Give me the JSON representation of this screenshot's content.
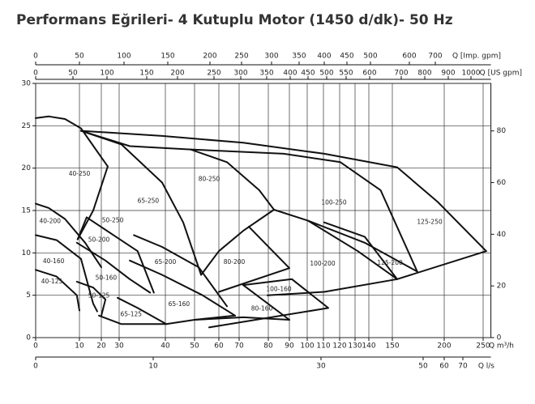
{
  "chart_data": {
    "type": "line",
    "title": "Performans Eğrileri- 4 Kutuplu Motor (1450 d/dk)- 50 Hz",
    "xlabel": "Q m³/h",
    "xlim": [
      0,
      260
    ],
    "xticks": [
      0,
      10,
      20,
      30,
      40,
      50,
      60,
      70,
      80,
      90,
      100,
      110,
      120,
      130,
      140,
      150,
      200,
      250
    ],
    "ylim": [
      0,
      30
    ],
    "yticks": [
      0,
      5,
      10,
      15,
      20,
      25,
      30
    ],
    "y2lim": [
      0,
      98.4
    ],
    "y2ticks": [
      0,
      20,
      40,
      60,
      80
    ],
    "grid": true,
    "color": "#111111",
    "top_axes": [
      {
        "label": "Q [Imp. gpm]",
        "ticks": [
          0,
          50,
          100,
          150,
          200,
          250,
          300,
          350,
          400,
          450,
          500,
          600,
          700
        ]
      },
      {
        "label": "Q [US gpm]",
        "ticks": [
          0,
          50,
          100,
          150,
          200,
          250,
          300,
          350,
          400,
          450,
          500,
          550,
          600,
          700,
          800,
          900,
          1000
        ]
      }
    ],
    "bottom_axis": {
      "label": "Q l/s",
      "ticks": [
        0,
        10,
        30,
        50,
        60,
        70
      ]
    },
    "series": [
      {
        "x": [
          0,
          3,
          6.7,
          10.7,
          23.6
        ],
        "values": [
          25.9,
          26.1,
          25.8,
          24.7,
          20.2
        ]
      },
      {
        "x": [
          23.6,
          16.3,
          9.6
        ],
        "values": [
          20.2,
          15.0,
          11.6
        ]
      },
      {
        "x": [
          0,
          3,
          6.7,
          12.6,
          20
        ],
        "values": [
          15.8,
          15.3,
          14.0,
          11.2,
          8.3
        ]
      },
      {
        "x": [
          9.6,
          13.3,
          26.8,
          34,
          37.5
        ],
        "values": [
          11.6,
          14.2,
          12.1,
          10.2,
          5.3
        ]
      },
      {
        "x": [
          0,
          4.8,
          10.7,
          16.3,
          18.1
        ],
        "values": [
          12.1,
          11.5,
          9.3,
          4.0,
          3.1
        ]
      },
      {
        "x": [
          9.4,
          22.3,
          32.3,
          36.7
        ],
        "values": [
          11.2,
          9.1,
          6.9,
          5.3
        ]
      },
      {
        "x": [
          0,
          4.8,
          9.4,
          10
        ],
        "values": [
          8.0,
          7.2,
          5.0,
          3.2
        ]
      },
      {
        "x": [
          9.4,
          16.3,
          22.3,
          20
        ],
        "values": [
          6.6,
          5.9,
          4.5,
          2.6
        ]
      },
      {
        "x": [
          18.9,
          30.5,
          40.3,
          50,
          68
        ],
        "values": [
          2.6,
          1.6,
          1.6,
          2.1,
          2.6
        ]
      },
      {
        "x": [
          32.3,
          39.3,
          53.3,
          68
        ],
        "values": [
          9.1,
          7.4,
          5.0,
          2.6
        ]
      },
      {
        "x": [
          33.2,
          39.3,
          51.7,
          64
        ],
        "values": [
          12.1,
          10.7,
          8.3,
          3.7
        ]
      },
      {
        "x": [
          29.1,
          34,
          40.3
        ],
        "values": [
          4.7,
          3.5,
          1.6
        ]
      },
      {
        "x": [
          50,
          71.4,
          90
        ],
        "values": [
          2.1,
          2.4,
          2.1
        ]
      },
      {
        "x": [
          71.4,
          90
        ],
        "values": [
          6.2,
          2.1
        ]
      },
      {
        "x": [
          73.3,
          90,
          60
        ],
        "values": [
          13.1,
          8.2,
          5.4
        ]
      },
      {
        "x": [
          71.4,
          91.4,
          113,
          56
        ],
        "values": [
          6.2,
          6.9,
          3.5,
          1.2
        ]
      },
      {
        "x": [
          100.5,
          132,
          154.7,
          110.5,
          79.7
        ],
        "values": [
          13.8,
          10.2,
          6.9,
          5.4,
          5.0
        ]
      },
      {
        "x": [
          110.5,
          137,
          154.7
        ],
        "values": [
          13.6,
          11.9,
          6.9
        ]
      },
      {
        "x": [
          154.7,
          254
        ],
        "values": [
          6.9,
          10.2
        ]
      },
      {
        "x": [
          10.7,
          39.3,
          71.4,
          110.5,
          154.7,
          193.8,
          254
        ],
        "values": [
          24.4,
          23.8,
          23.0,
          21.7,
          20.1,
          16.0,
          10.2
        ]
      },
      {
        "x": [
          10.7,
          32.3,
          48.6,
          87.3,
          120.5,
          145,
          174
        ],
        "values": [
          24.4,
          22.6,
          22.2,
          21.7,
          20.7,
          17.4,
          7.8
        ]
      },
      {
        "x": [
          10.7,
          30.5,
          39.3,
          46.1,
          52.7
        ],
        "values": [
          24.4,
          22.8,
          18.3,
          13.6,
          7.4
        ]
      },
      {
        "x": [
          48.6,
          64,
          76.9,
          82.7
        ],
        "values": [
          22.2,
          20.7,
          17.4,
          15.1
        ]
      },
      {
        "x": [
          82.7,
          100.5,
          137,
          174
        ],
        "values": [
          15.1,
          13.8,
          11.2,
          7.8
        ]
      },
      {
        "x": [
          82.7,
          71.4,
          60,
          52.7
        ],
        "values": [
          15.1,
          12.6,
          10.2,
          7.4
        ]
      }
    ],
    "annotations": [
      {
        "text": "40-250",
        "x": 10,
        "y": 19.3
      },
      {
        "text": "40-200",
        "x": 3.3,
        "y": 13.7
      },
      {
        "text": "40-160",
        "x": 4.1,
        "y": 9.0
      },
      {
        "text": "40-125",
        "x": 3.7,
        "y": 6.6
      },
      {
        "text": "50-250",
        "x": 26.4,
        "y": 13.8
      },
      {
        "text": "50-200",
        "x": 18.9,
        "y": 11.5
      },
      {
        "text": "50-160",
        "x": 22.7,
        "y": 7.0
      },
      {
        "text": "50-125",
        "x": 18.9,
        "y": 4.9
      },
      {
        "text": "65-250",
        "x": 36.3,
        "y": 16.1
      },
      {
        "text": "65-200",
        "x": 40,
        "y": 8.9
      },
      {
        "text": "65-160",
        "x": 44.7,
        "y": 3.9
      },
      {
        "text": "65-125",
        "x": 32.6,
        "y": 2.7
      },
      {
        "text": "80-250",
        "x": 56,
        "y": 18.7
      },
      {
        "text": "80-200",
        "x": 67.6,
        "y": 8.9
      },
      {
        "text": "80-160",
        "x": 77.8,
        "y": 3.4
      },
      {
        "text": "100-250",
        "x": 116.5,
        "y": 15.9
      },
      {
        "text": "100-200",
        "x": 109.5,
        "y": 8.7
      },
      {
        "text": "100-160",
        "x": 85,
        "y": 5.7
      },
      {
        "text": "125-250",
        "x": 186,
        "y": 13.6
      },
      {
        "text": "125-200",
        "x": 149,
        "y": 8.8
      }
    ]
  }
}
